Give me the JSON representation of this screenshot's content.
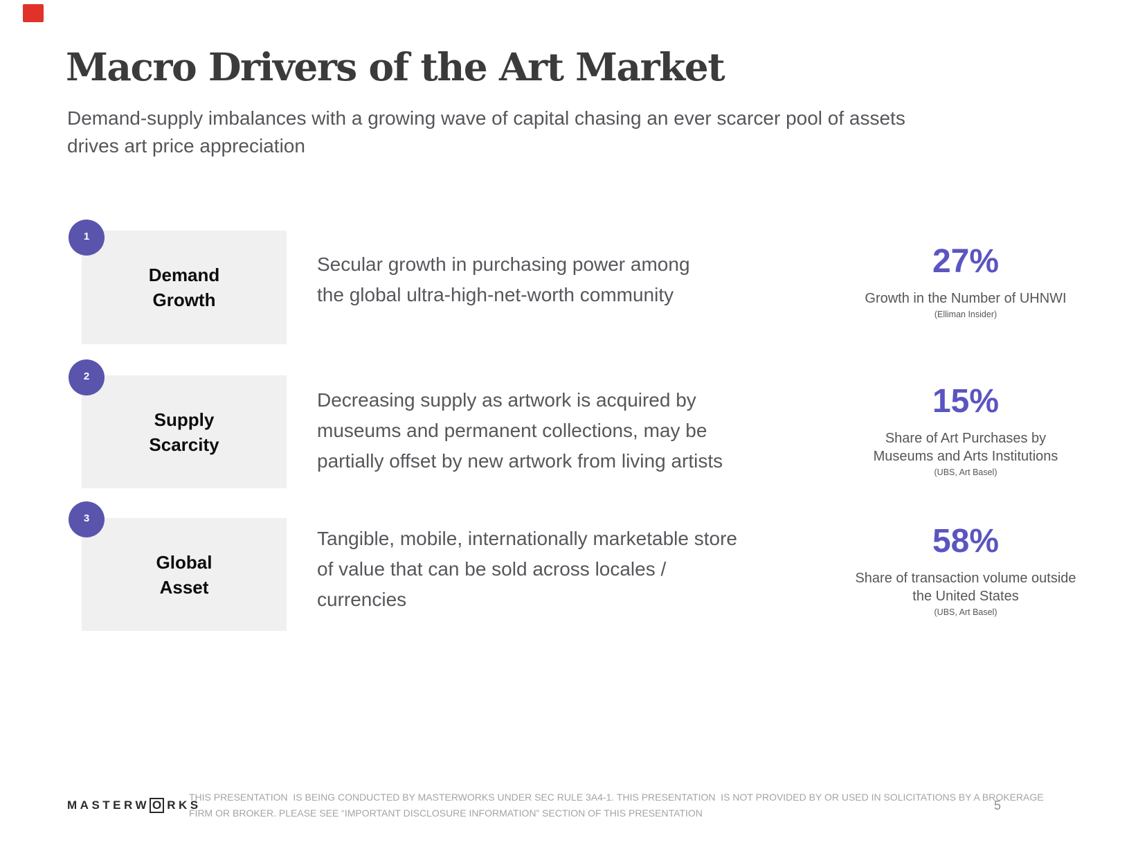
{
  "slide": {
    "title": "Macro Drivers of the Art Market",
    "subtitle": "Demand-supply imbalances with a growing wave of capital chasing an ever scarcer pool of assets\ndrives art price appreciation",
    "colors": {
      "accent_badge": "#5a54ad",
      "accent_stat": "#5b55c0",
      "label_box_bg": "#f0f0f0",
      "red_marker": "#e1322a",
      "title_text": "#3b3b3b",
      "body_text": "#56575b"
    },
    "rows": [
      {
        "number": "1",
        "label": "Demand\nGrowth",
        "description": "Secular growth in purchasing power among\nthe global ultra-high-net-worth community",
        "stat_value": "27%",
        "stat_caption": "Growth in the Number of UHNWI",
        "stat_source": "(Elliman Insider)"
      },
      {
        "number": "2",
        "label": "Supply\nScarcity",
        "description": "Decreasing supply as artwork is acquired by\nmuseums and permanent collections, may be\npartially offset by new artwork from living artists",
        "stat_value": "15%",
        "stat_caption": "Share of Art Purchases by\nMuseums and Arts Institutions",
        "stat_source": "(UBS, Art Basel)"
      },
      {
        "number": "3",
        "label": "Global\nAsset",
        "description": "Tangible, mobile, internationally marketable store\nof value that can be sold across locales /\ncurrencies",
        "stat_value": "58%",
        "stat_caption": "Share of transaction volume outside\nthe United States",
        "stat_source": "(UBS, Art Basel)"
      }
    ],
    "footer": {
      "logo_prefix": "MASTERW",
      "logo_boxed_letter": "O",
      "logo_suffix": "RKS",
      "disclaimer": "THIS PRESENTATION  IS BEING CONDUCTED BY MASTERWORKS UNDER SEC RULE 3A4-1. THIS PRESENTATION  IS NOT PROVIDED BY OR USED IN SOLICITATIONS BY A BROKERAGE\nFIRM OR BROKER. PLEASE SEE “IMPORTANT DISCLOSURE INFORMATION” SECTION OF THIS PRESENTATION",
      "page_number": "5"
    }
  }
}
